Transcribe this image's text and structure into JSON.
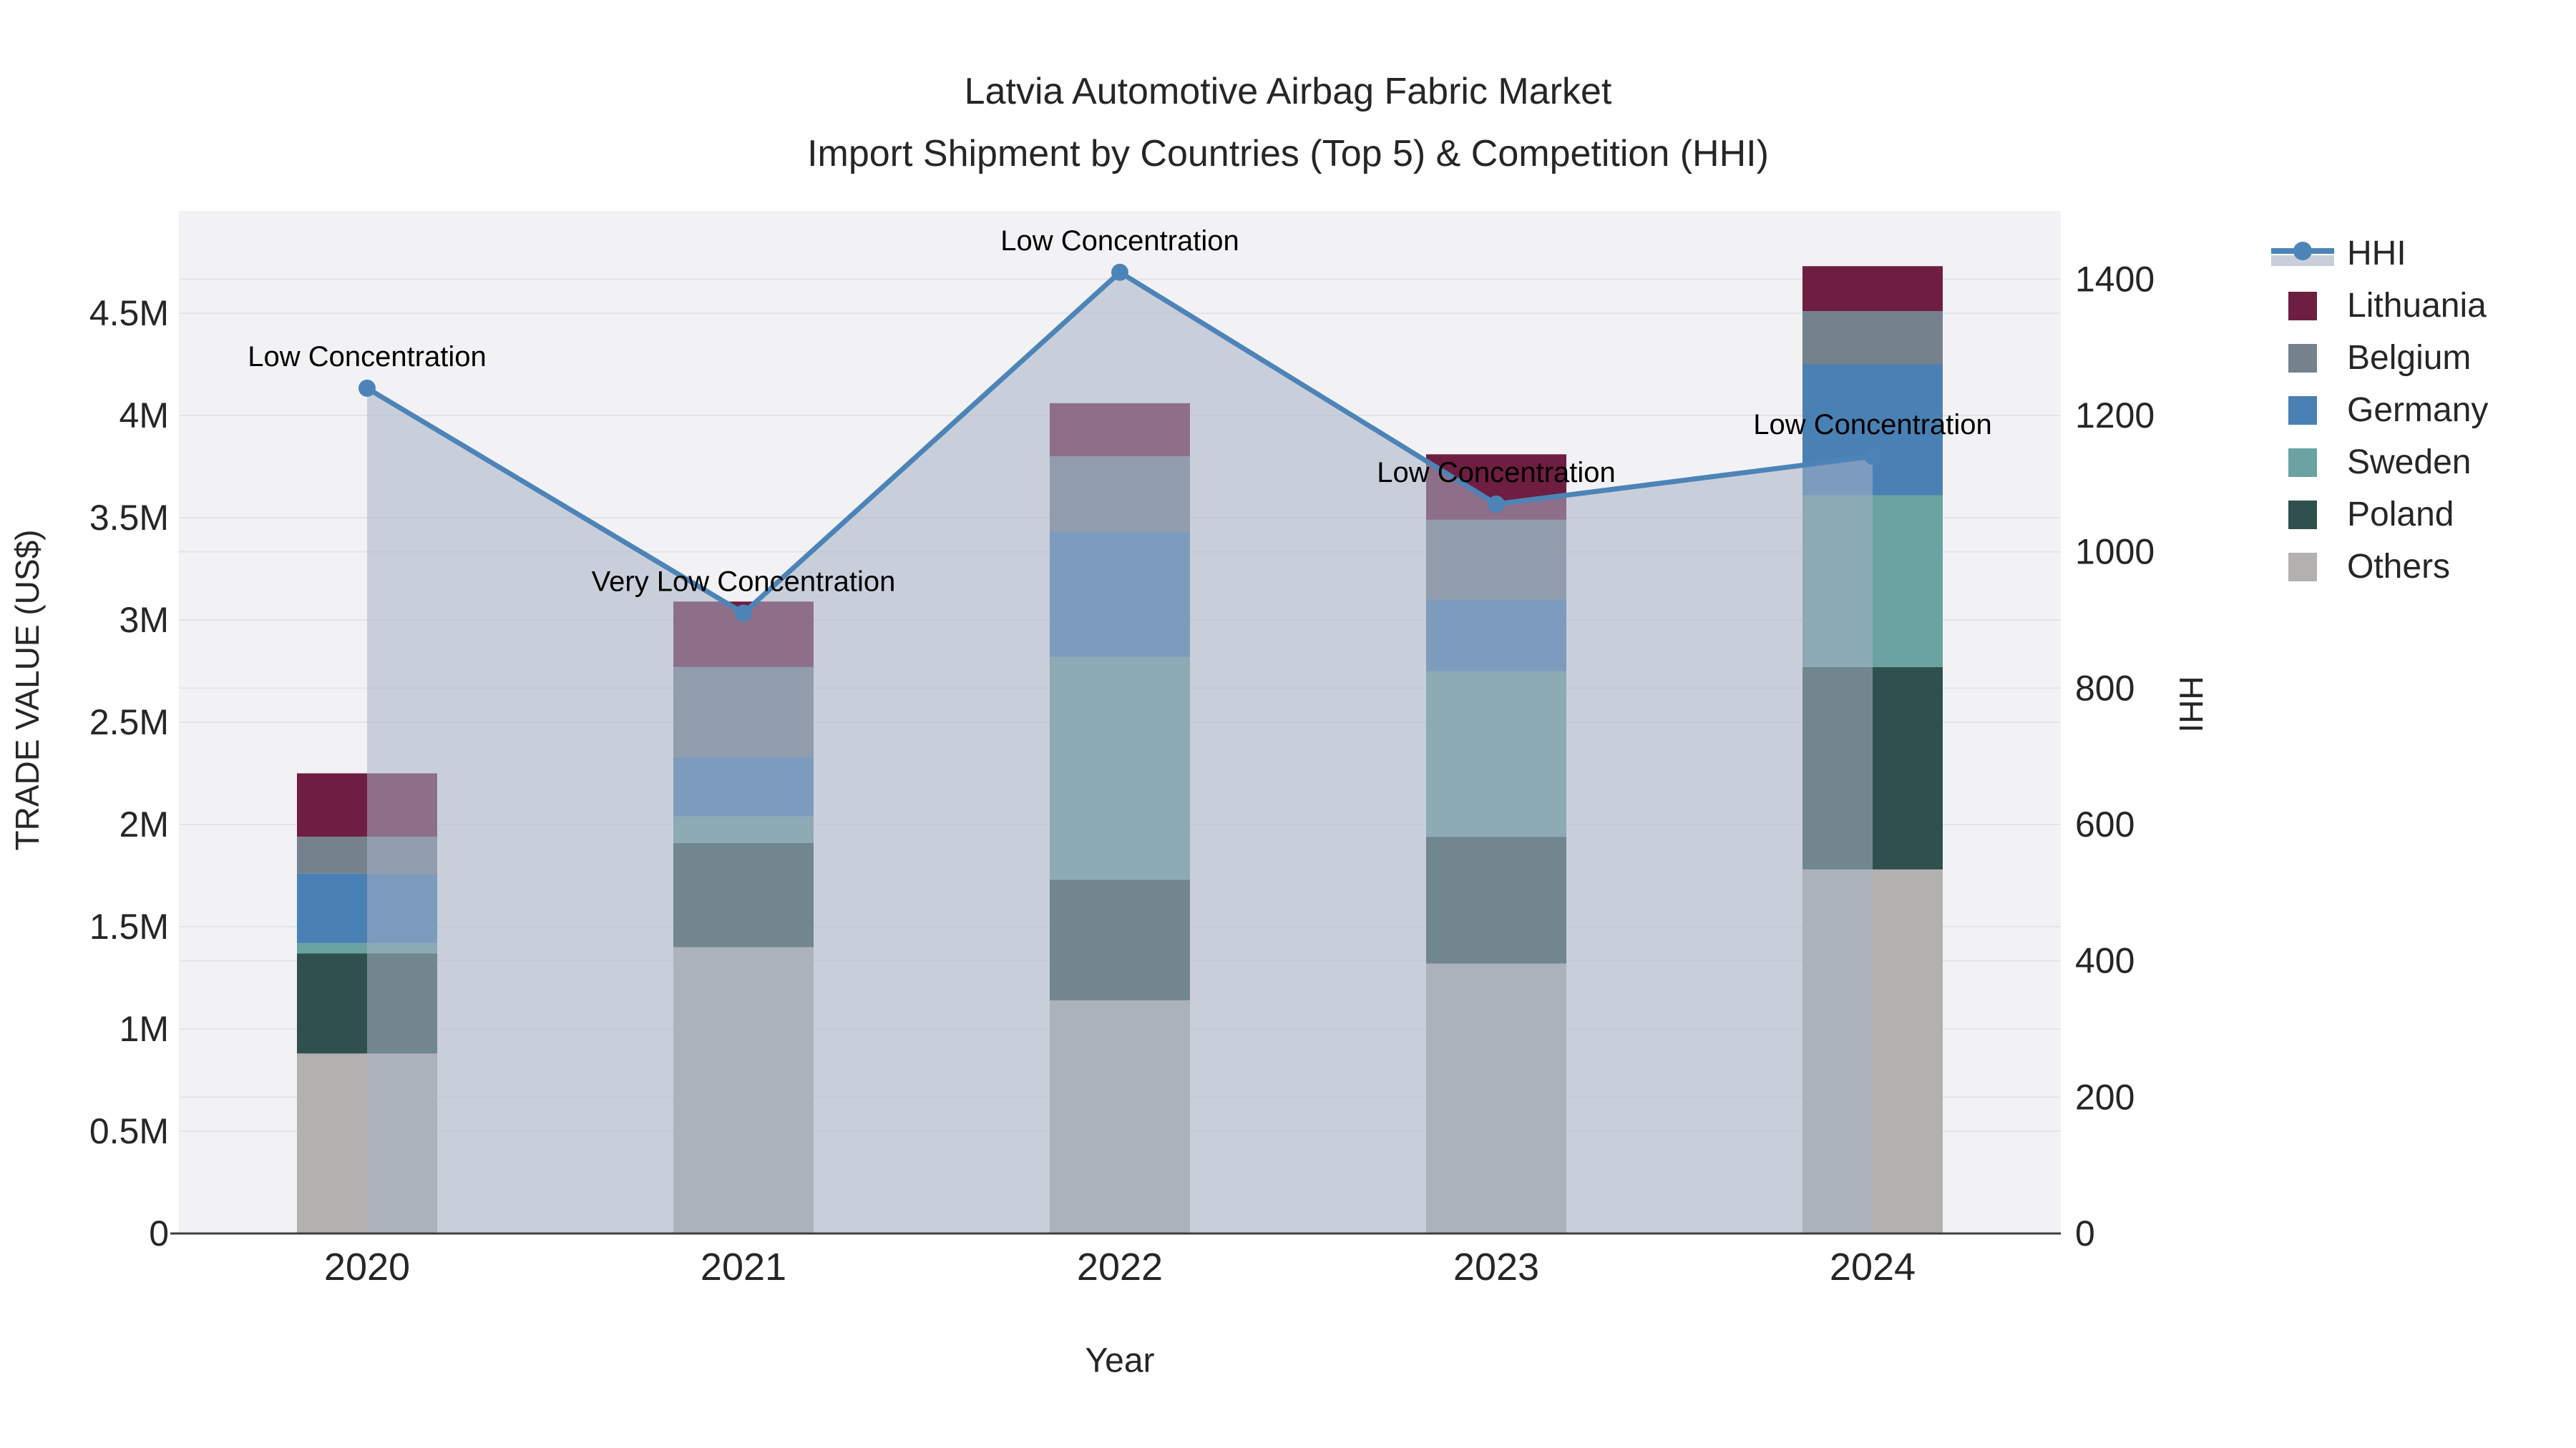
{
  "chart_data": {
    "type": "combo-stacked-bar-line",
    "title": "Latvia Automotive Airbag Fabric Market",
    "subtitle": "Import Shipment by Countries (Top 5) & Competition (HHI)",
    "xlabel": "Year",
    "ylabel_left": "TRADE VALUE (US$)",
    "ylabel_right": "HHI",
    "categories": [
      "2020",
      "2021",
      "2022",
      "2023",
      "2024"
    ],
    "values_unit": "USD millions",
    "stack_order_bottom_to_top": [
      "Others",
      "Poland",
      "Sweden",
      "Germany",
      "Belgium",
      "Lithuania"
    ],
    "series": [
      {
        "name": "Lithuania",
        "color": "#6e1e41",
        "values": [
          0.31,
          0.32,
          0.26,
          0.32,
          0.22
        ]
      },
      {
        "name": "Belgium",
        "color": "#75828e",
        "values": [
          0.18,
          0.44,
          0.37,
          0.39,
          0.26
        ]
      },
      {
        "name": "Germany",
        "color": "#4a81b4",
        "values": [
          0.34,
          0.29,
          0.61,
          0.35,
          0.64
        ]
      },
      {
        "name": "Sweden",
        "color": "#6aa3a1",
        "values": [
          0.05,
          0.13,
          1.09,
          0.81,
          0.84
        ]
      },
      {
        "name": "Poland",
        "color": "#2f504c",
        "values": [
          0.49,
          0.51,
          0.59,
          0.62,
          0.99
        ]
      },
      {
        "name": "Others",
        "color": "#b2b1af",
        "values": [
          0.88,
          1.4,
          1.14,
          1.32,
          1.78
        ]
      }
    ],
    "bar_totals": [
      2.25,
      3.09,
      4.06,
      3.81,
      4.73
    ],
    "hhi": {
      "name": "HHI",
      "color": "#4d84b8",
      "area_color": "rgba(168,178,196,0.55)",
      "values": [
        1240,
        910,
        1410,
        1070,
        1140
      ]
    },
    "annotations": [
      "Low Concentration",
      "Very Low Concentration",
      "Low Concentration",
      "Low Concentration",
      "Low Concentration"
    ],
    "axis_left": {
      "tick_labels": [
        "0",
        "0.5M",
        "1M",
        "1.5M",
        "2M",
        "2.5M",
        "3M",
        "3.5M",
        "4M",
        "4.5M"
      ],
      "tick_values": [
        0,
        0.5,
        1,
        1.5,
        2,
        2.5,
        3,
        3.5,
        4,
        4.5
      ],
      "max": 5
    },
    "axis_right": {
      "tick_labels": [
        "0",
        "200",
        "400",
        "600",
        "800",
        "1000",
        "1200",
        "1400"
      ],
      "tick_values": [
        0,
        200,
        400,
        600,
        800,
        1000,
        1200,
        1400
      ],
      "max": 1500
    },
    "grid": true,
    "legend_position": "right",
    "legend_order": [
      "HHI",
      "Lithuania",
      "Belgium",
      "Germany",
      "Sweden",
      "Poland",
      "Others"
    ]
  }
}
